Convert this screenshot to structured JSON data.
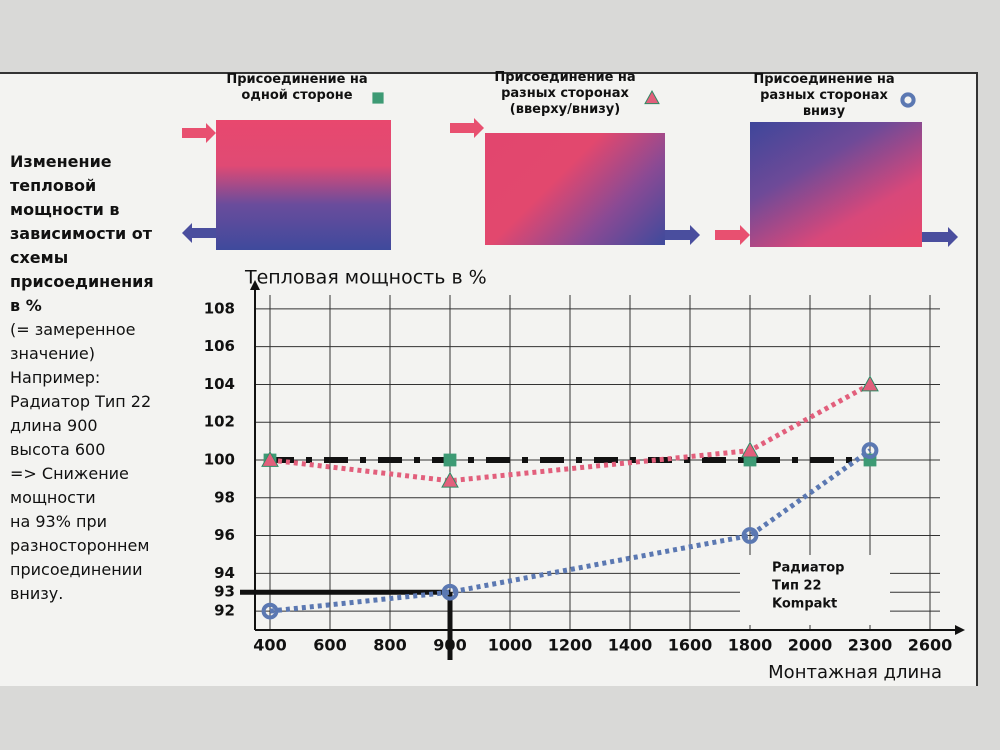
{
  "chart_data": {
    "type": "line",
    "title": "Тепловая мощность в %",
    "x_label": "Монтажная длина",
    "side_note_bold": [
      "Изменение",
      "тепловой",
      "мощности в",
      "зависимости от",
      "схемы",
      "присоединения",
      "в %"
    ],
    "side_note": [
      "(= замеренное",
      "значение)",
      "Например:",
      "Радиатор Тип 22",
      "длина 900",
      "высота 600",
      "=> Снижение",
      "мощности",
      "на 93% при",
      "разностороннем",
      "присоединении",
      "внизу."
    ],
    "annotation": [
      "Радиатор",
      "Тип 22",
      "Kompakt"
    ],
    "xticks": [
      400,
      600,
      800,
      900,
      1000,
      1200,
      1400,
      1600,
      1800,
      2000,
      2300,
      2600
    ],
    "ylim": [
      91,
      109
    ],
    "yticks": [
      92,
      93,
      94,
      96,
      98,
      100,
      102,
      104,
      106,
      108
    ],
    "grid": true,
    "highlight": {
      "x": 900,
      "y": 93
    },
    "series": [
      {
        "name": "Присоединение на одной стороне",
        "marker": "square",
        "color": "#3d9a74",
        "line_color": "#111111",
        "x": [
          400,
          900,
          1800,
          2300
        ],
        "values": [
          100,
          100,
          100,
          100
        ]
      },
      {
        "name": "Присоединение на разных сторонах (вверху/внизу)",
        "marker": "triangle",
        "color": "#e25f7c",
        "x": [
          400,
          900,
          1800,
          2300
        ],
        "values": [
          100,
          98.9,
          100.5,
          104
        ]
      },
      {
        "name": "Присоединение на разных сторонах внизу",
        "marker": "circle",
        "color": "#5b78b2",
        "x": [
          400,
          900,
          1800,
          2300
        ],
        "values": [
          92,
          93,
          96,
          100.5
        ]
      }
    ]
  }
}
